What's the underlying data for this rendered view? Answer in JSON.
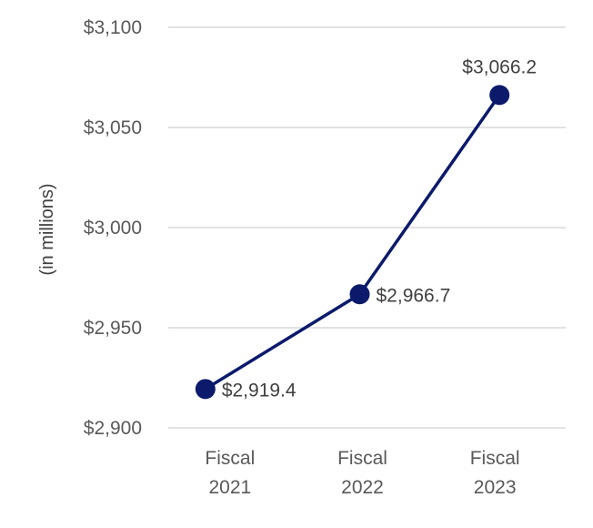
{
  "chart_data": {
    "type": "line",
    "categories": [
      [
        "Fiscal",
        "2021"
      ],
      [
        "Fiscal",
        "2022"
      ],
      [
        "Fiscal",
        "2023"
      ]
    ],
    "values": [
      2919.4,
      2966.7,
      3066.2
    ],
    "value_labels": [
      "$2,919.4",
      "$2,966.7",
      "$3,066.2"
    ],
    "ylabel": "(in millions)",
    "ylim": [
      2900,
      3100
    ],
    "yticks": [
      3100,
      3050,
      3000,
      2950,
      2900
    ],
    "ytick_labels": [
      "$3,100",
      "$3,050",
      "$3,000",
      "$2,950",
      "$2,900"
    ],
    "grid": true,
    "legend": "none",
    "line_color": "#0b1a6b"
  }
}
